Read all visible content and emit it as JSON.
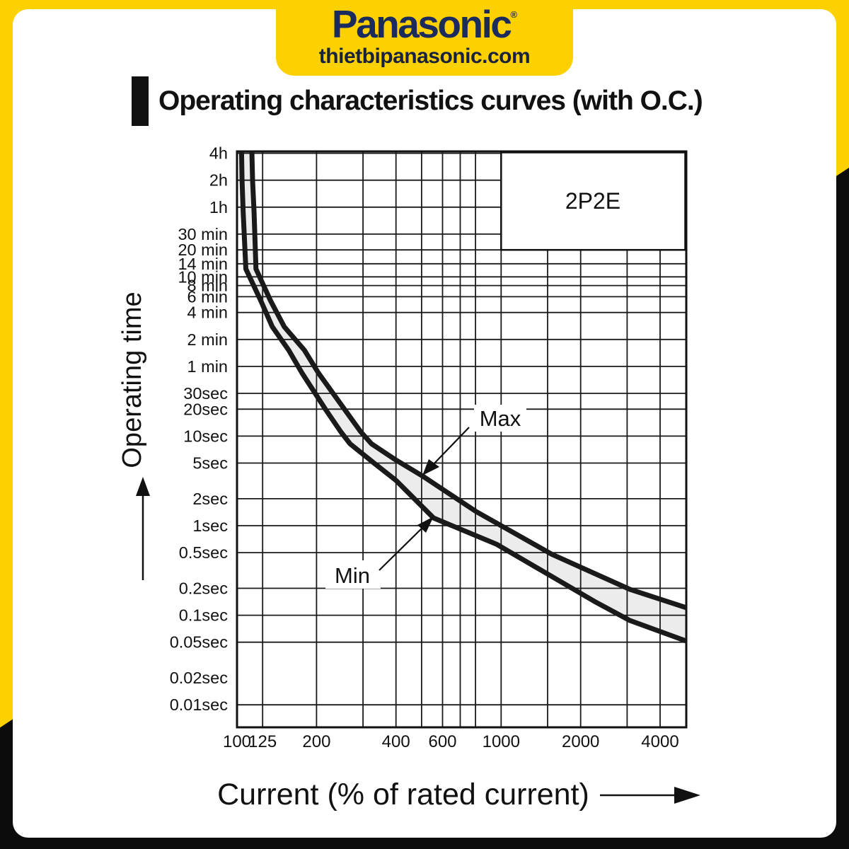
{
  "header": {
    "brand": "Panasonic",
    "registered": "®",
    "website": "thietbipanasonic.com"
  },
  "title": "Operating characteristics curves (with O.C.)",
  "colors": {
    "yellow": "#FDD000",
    "navy": "#1B2B5E",
    "black": "#111111",
    "band": "#ECECEC",
    "grid": "#1A1A1A",
    "curve": "#1A1A1A"
  },
  "chart_data": {
    "type": "line",
    "model_label": "2P2E",
    "xlabel": "Current (% of rated current)",
    "ylabel": "Operating time",
    "x_scale": "log",
    "y_scale": "log",
    "x_domain_percent": [
      100,
      5040
    ],
    "y_domain_seconds": [
      0.0056,
      15100
    ],
    "grid": true,
    "x_ticks": [
      {
        "v": 100,
        "label": "100"
      },
      {
        "v": 125,
        "label": "125"
      },
      {
        "v": 200,
        "label": "200"
      },
      {
        "v": 300,
        "label": ""
      },
      {
        "v": 400,
        "label": "400"
      },
      {
        "v": 500,
        "label": ""
      },
      {
        "v": 600,
        "label": "600"
      },
      {
        "v": 700,
        "label": ""
      },
      {
        "v": 800,
        "label": ""
      },
      {
        "v": 1000,
        "label": "1000"
      },
      {
        "v": 1500,
        "label": ""
      },
      {
        "v": 2000,
        "label": "2000"
      },
      {
        "v": 3000,
        "label": ""
      },
      {
        "v": 4000,
        "label": "4000"
      }
    ],
    "y_ticks": [
      {
        "s": 14400,
        "label": "4h"
      },
      {
        "s": 7200,
        "label": "2h"
      },
      {
        "s": 3600,
        "label": "1h"
      },
      {
        "s": 1800,
        "label": "30 min"
      },
      {
        "s": 1200,
        "label": "20 min"
      },
      {
        "s": 840,
        "label": "14 min"
      },
      {
        "s": 600,
        "label": "10 min"
      },
      {
        "s": 480,
        "label": "8 min"
      },
      {
        "s": 360,
        "label": "6 min"
      },
      {
        "s": 240,
        "label": "4 min"
      },
      {
        "s": 120,
        "label": "2 min"
      },
      {
        "s": 60,
        "label": "1 min"
      },
      {
        "s": 30,
        "label": "30sec"
      },
      {
        "s": 20,
        "label": "20sec"
      },
      {
        "s": 10,
        "label": "10sec"
      },
      {
        "s": 5,
        "label": "5sec"
      },
      {
        "s": 2,
        "label": "2sec"
      },
      {
        "s": 1,
        "label": "1sec"
      },
      {
        "s": 0.5,
        "label": "0.5sec"
      },
      {
        "s": 0.2,
        "label": "0.2sec"
      },
      {
        "s": 0.1,
        "label": "0.1sec"
      },
      {
        "s": 0.05,
        "label": "0.05sec"
      },
      {
        "s": 0.02,
        "label": "0.02sec",
        "gridline": false
      },
      {
        "s": 0.01,
        "label": "0.01sec"
      }
    ],
    "series": [
      {
        "name": "Max",
        "points": [
          [
            113.8,
            15100
          ],
          [
            114.5,
            7200
          ],
          [
            116,
            3160
          ],
          [
            118,
            736
          ],
          [
            134,
            325
          ],
          [
            151,
            166
          ],
          [
            180,
            91
          ],
          [
            203,
            51
          ],
          [
            255,
            20
          ],
          [
            294,
            11.2
          ],
          [
            323,
            8.2
          ],
          [
            400,
            5.4
          ],
          [
            503,
            3.6
          ],
          [
            804,
            1.44
          ],
          [
            1556,
            0.48
          ],
          [
            3069,
            0.195
          ],
          [
            5120,
            0.119
          ]
        ]
      },
      {
        "name": "Min",
        "points": [
          [
            104,
            15100
          ],
          [
            104.5,
            7200
          ],
          [
            105.5,
            3160
          ],
          [
            108,
            736
          ],
          [
            123,
            325
          ],
          [
            136,
            166
          ],
          [
            157,
            91
          ],
          [
            176,
            51
          ],
          [
            216,
            20
          ],
          [
            247,
            11.2
          ],
          [
            268,
            8.2
          ],
          [
            330,
            5.0
          ],
          [
            400,
            3.2
          ],
          [
            555,
            1.22
          ],
          [
            962,
            0.62
          ],
          [
            2253,
            0.143
          ],
          [
            3067,
            0.0875
          ],
          [
            5180,
            0.0498
          ]
        ]
      }
    ],
    "annotations": {
      "max_label": "Max",
      "min_label": "Min"
    }
  }
}
